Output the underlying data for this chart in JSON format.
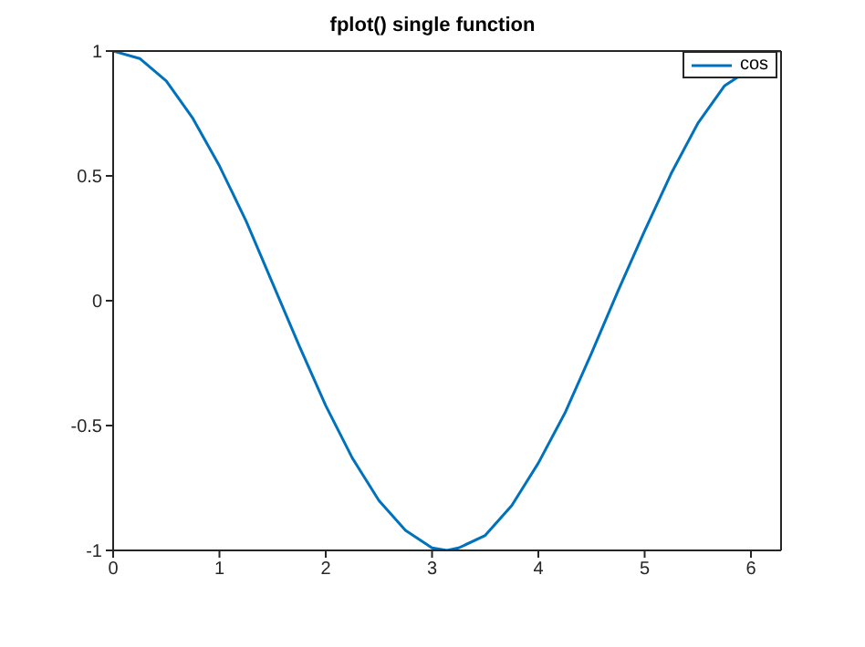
{
  "chart_data": {
    "type": "line",
    "title": "fplot() single function",
    "legend": "top right",
    "xlim": [
      0,
      6.2832
    ],
    "xticks": [
      0,
      1,
      2,
      3,
      4,
      5,
      6
    ],
    "ylim": [
      -1,
      1
    ],
    "yticks": [
      -1,
      -0.5,
      0,
      0.5,
      1
    ],
    "series": [
      {
        "name": "cos",
        "color": "#0072bd",
        "x": [
          0,
          0.25,
          0.5,
          0.75,
          1,
          1.25,
          1.5,
          1.75,
          2,
          2.25,
          2.5,
          2.75,
          3,
          3.14,
          3.25,
          3.5,
          3.75,
          4,
          4.25,
          4.5,
          4.75,
          5,
          5.25,
          5.5,
          5.75,
          6.25,
          6.2832
        ],
        "values": [
          1,
          0.97,
          0.88,
          0.73,
          0.54,
          0.32,
          0.07,
          -0.18,
          -0.42,
          -0.63,
          -0.8,
          -0.92,
          -0.99,
          -1,
          -0.99,
          -0.94,
          -0.82,
          -0.65,
          -0.45,
          -0.21,
          0.04,
          0.28,
          0.51,
          0.71,
          0.86,
          1,
          1
        ]
      }
    ]
  }
}
